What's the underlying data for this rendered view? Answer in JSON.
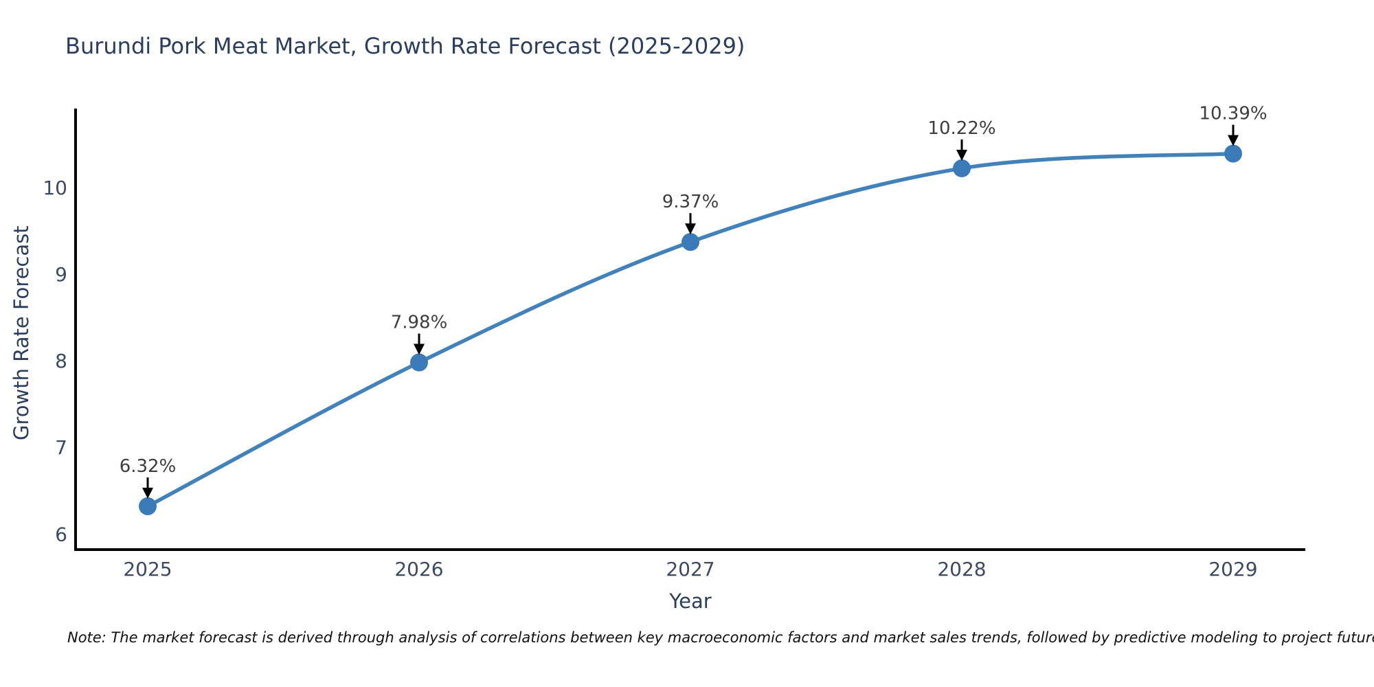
{
  "page": {
    "title": "Burundi Pork Meat Market, Growth Rate Forecast (2025-2029)"
  },
  "chart_data": {
    "type": "line",
    "title": "Burundi Pork Meat Market, Growth Rate Forecast (2025-2029)",
    "x": [
      2025,
      2026,
      2027,
      2028,
      2029
    ],
    "xticklabels": [
      "2025",
      "2026",
      "2027",
      "2028",
      "2029"
    ],
    "series": [
      {
        "name": "Growth Rate Forecast",
        "values": [
          6.32,
          7.98,
          9.37,
          10.22,
          10.39
        ],
        "annotations": [
          "6.32%",
          "7.98%",
          "9.37%",
          "10.22%",
          "10.39%"
        ]
      }
    ],
    "xlabel": "Year",
    "ylabel": "Growth Rate Forecast",
    "yticks": [
      6,
      7,
      8,
      9,
      10
    ],
    "ylim": [
      5.82,
      10.91
    ],
    "grid": false,
    "legend_position": "none",
    "line_shape": "spline",
    "colors": {
      "line": "#4182bb",
      "marker": "#3a7ab8",
      "annotation_text": "#3d3d3d",
      "annotation_arrow": "#000000",
      "axis_line": "#000000",
      "tick_label": "#3b4a63",
      "axis_label": "#2a3f5f",
      "background": "#ffffff"
    }
  },
  "note": {
    "text": "Note: The market forecast is derived through analysis of correlations between key macroeconomic factors and market sales trends, followed by predictive modeling to project future sales"
  }
}
